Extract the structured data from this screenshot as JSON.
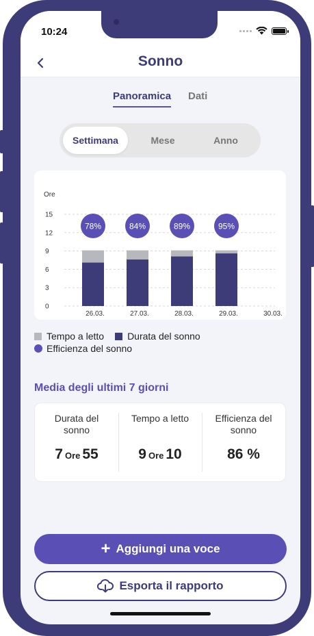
{
  "status": {
    "time": "10:24"
  },
  "header": {
    "title": "Sonno"
  },
  "tabs": [
    {
      "label": "Panoramica"
    },
    {
      "label": "Dati"
    }
  ],
  "period": [
    {
      "label": "Settimana"
    },
    {
      "label": "Mese"
    },
    {
      "label": "Anno"
    }
  ],
  "chart_data": {
    "type": "bar",
    "ylabel": "Ore",
    "ylim": [
      0,
      15
    ],
    "yticks": [
      "15",
      "12",
      "9",
      "6",
      "3",
      "0"
    ],
    "categories": [
      "26.03.",
      "27.03.",
      "28.03.",
      "29.03.",
      "30.03."
    ],
    "series": [
      {
        "name": "Durata del sonno",
        "values": [
          7.1,
          7.6,
          8.1,
          8.6,
          null
        ]
      },
      {
        "name": "Tempo a letto",
        "values": [
          9.1,
          9.1,
          9.1,
          9.1,
          null
        ]
      }
    ],
    "efficiency_labels": [
      "78%",
      "84%",
      "89%",
      "95%",
      null
    ],
    "colors": {
      "duration": "#3d3b78",
      "bed": "#b7b8bd",
      "efficiency": "#5a4fb4"
    }
  },
  "legend": {
    "bed": "Tempo a letto",
    "duration": "Durata del sonno",
    "efficiency": "Efficienza del sonno"
  },
  "summary": {
    "title": "Media degli ultimi 7 giorni",
    "duration": {
      "label": "Durata del sonno",
      "hours": "7",
      "unit": "Ore",
      "minutes": "55"
    },
    "bed": {
      "label": "Tempo a letto",
      "hours": "9",
      "unit": "Ore",
      "minutes": "10"
    },
    "efficiency": {
      "label": "Efficienza del sonno",
      "value": "86 %"
    }
  },
  "buttons": {
    "add": "Aggiungi una voce",
    "export": "Esporta il rapporto"
  }
}
